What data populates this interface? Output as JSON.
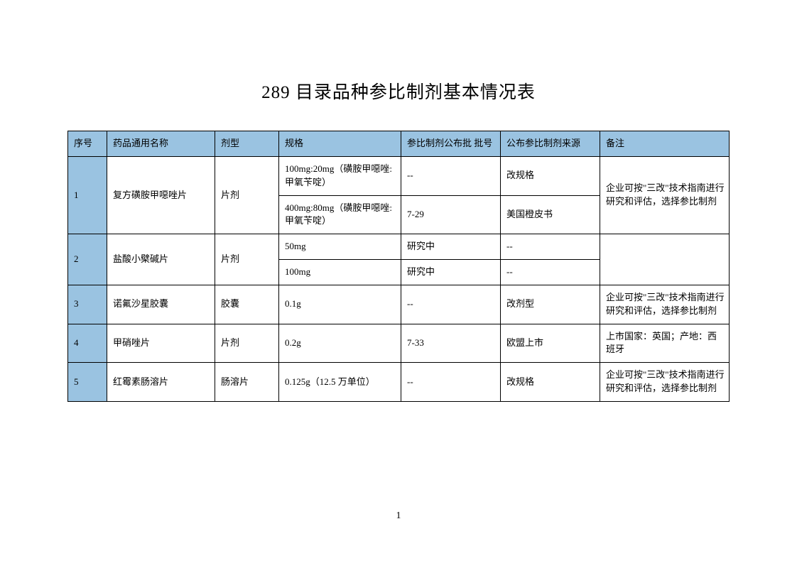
{
  "title": "289 目录品种参比制剂基本情况表",
  "page_number": "1",
  "colors": {
    "header_bg": "#9ac3e1",
    "border": "#000000",
    "text": "#000000",
    "page_bg": "#ffffff"
  },
  "table": {
    "columns": [
      {
        "key": "seq",
        "label": "序号"
      },
      {
        "key": "name",
        "label": "药品通用名称"
      },
      {
        "key": "form",
        "label": "剂型"
      },
      {
        "key": "spec",
        "label": "规格"
      },
      {
        "key": "batch",
        "label": "参比制剂公布批 批号"
      },
      {
        "key": "source",
        "label": "公布参比制剂来源"
      },
      {
        "key": "note",
        "label": "备注"
      }
    ],
    "rows": [
      {
        "seq": "1",
        "name": "复方磺胺甲噁唑片",
        "form": "片剂",
        "specs": [
          {
            "spec": "100mg:20mg（磺胺甲噁唑:甲氧苄啶）",
            "batch": "--",
            "source": "改规格",
            "note": "企业可按\"三改\"技术指南进行研究和评估，选择参比制剂"
          },
          {
            "spec": "400mg:80mg（磺胺甲噁唑:甲氧苄啶）",
            "batch": "7-29",
            "source": "美国橙皮书",
            "note": ""
          }
        ]
      },
      {
        "seq": "2",
        "name": "盐酸小檗碱片",
        "form": "片剂",
        "specs": [
          {
            "spec": "50mg",
            "batch": "研究中",
            "source": "--",
            "note": ""
          },
          {
            "spec": "100mg",
            "batch": "研究中",
            "source": "--",
            "note": ""
          }
        ]
      },
      {
        "seq": "3",
        "name": "诺氟沙星胶囊",
        "form": "胶囊",
        "specs": [
          {
            "spec": "0.1g",
            "batch": "--",
            "source": "改剂型",
            "note": "企业可按\"三改\"技术指南进行研究和评估，选择参比制剂"
          }
        ]
      },
      {
        "seq": "4",
        "name": "甲硝唑片",
        "form": "片剂",
        "specs": [
          {
            "spec": "0.2g",
            "batch": "7-33",
            "source": "欧盟上市",
            "note": "上市国家：英国；产地：西班牙"
          }
        ]
      },
      {
        "seq": "5",
        "name": "红霉素肠溶片",
        "form": "肠溶片",
        "specs": [
          {
            "spec": "0.125g（12.5 万单位）",
            "batch": "--",
            "source": "改规格",
            "note": "企业可按\"三改\"技术指南进行研究和评估，选择参比制剂"
          }
        ]
      }
    ]
  }
}
